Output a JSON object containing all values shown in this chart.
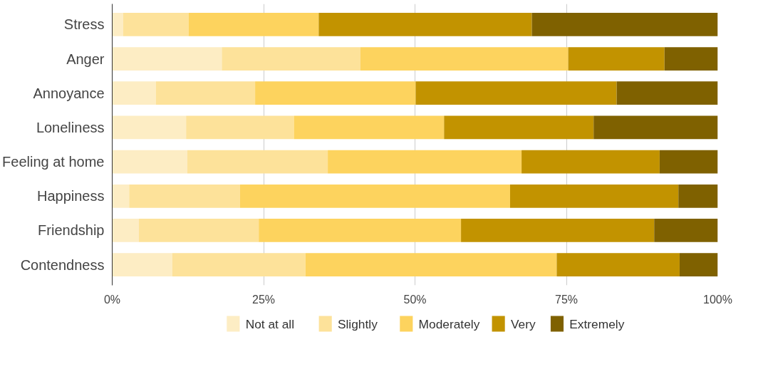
{
  "chart_data": {
    "type": "bar",
    "orientation": "horizontal",
    "stacked": true,
    "categories": [
      "Stress",
      "Anger",
      "Annoyance",
      "Loneliness",
      "Feeling at home",
      "Happiness",
      "Friendship",
      "Contendness"
    ],
    "series": [
      {
        "name": "Not at all",
        "color": "#fdedc4",
        "values": [
          1.8,
          18.1,
          7.2,
          12.2,
          12.4,
          2.8,
          4.4,
          9.9
        ]
      },
      {
        "name": "Slightly",
        "color": "#fde29a",
        "values": [
          10.8,
          22.9,
          16.4,
          17.8,
          23.2,
          18.3,
          19.8,
          22.0
        ]
      },
      {
        "name": "Moderately",
        "color": "#fdd35e",
        "values": [
          21.5,
          34.3,
          26.5,
          24.8,
          32.0,
          44.6,
          33.4,
          41.5
        ]
      },
      {
        "name": "Very",
        "color": "#c29300",
        "values": [
          35.2,
          15.9,
          33.2,
          24.7,
          22.8,
          27.8,
          31.9,
          20.3
        ]
      },
      {
        "name": "Extremely",
        "color": "#7f6100",
        "values": [
          30.7,
          8.8,
          16.7,
          20.5,
          9.6,
          6.5,
          10.5,
          6.3
        ]
      }
    ],
    "xlim": [
      0,
      100
    ],
    "xticks": [
      {
        "value": 0,
        "label": "0%"
      },
      {
        "value": 25,
        "label": "25%"
      },
      {
        "value": 50,
        "label": "50%"
      },
      {
        "value": 75,
        "label": "75%"
      },
      {
        "value": 100,
        "label": "100%"
      }
    ],
    "grid": "x",
    "legend": "bottom"
  }
}
